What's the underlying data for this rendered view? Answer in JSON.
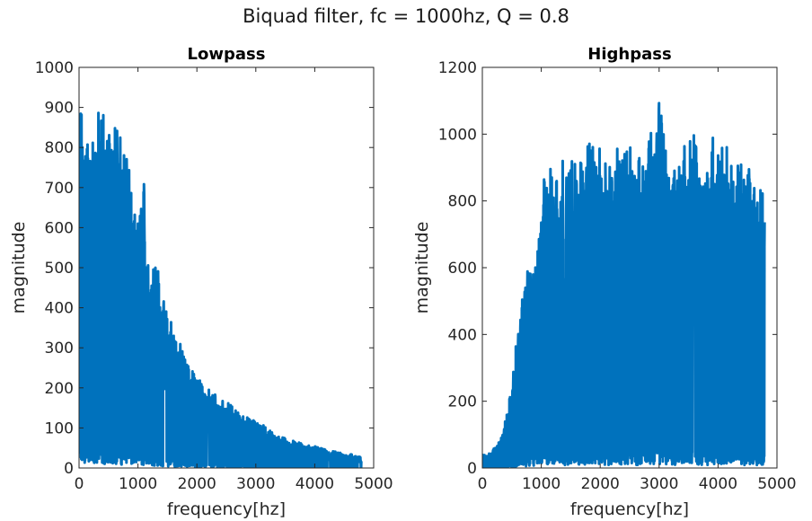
{
  "figure": {
    "title": "Biquad filter, fc = 1000hz, Q = 0.8",
    "line_color": "#0072BD"
  },
  "chart_data": [
    {
      "type": "line",
      "title": "Lowpass",
      "xlabel": "frequency[hz]",
      "ylabel": "magnitude",
      "xlim": [
        0,
        5000
      ],
      "ylim": [
        0,
        1000
      ],
      "xticks": [
        0,
        1000,
        2000,
        3000,
        4000,
        5000
      ],
      "yticks": [
        0,
        100,
        200,
        300,
        400,
        500,
        600,
        700,
        800,
        900,
        1000
      ],
      "grid": false,
      "x_data_max": 4790,
      "envelope": {
        "x": [
          0,
          100,
          200,
          300,
          400,
          500,
          600,
          700,
          800,
          900,
          1000,
          1100,
          1200,
          1300,
          1400,
          1500,
          1600,
          1700,
          1800,
          1900,
          2000,
          2200,
          2400,
          2600,
          2800,
          3000,
          3200,
          3400,
          3600,
          3800,
          4000,
          4200,
          4400,
          4600,
          4790
        ],
        "y": [
          930,
          870,
          850,
          890,
          920,
          860,
          920,
          830,
          885,
          650,
          620,
          735,
          520,
          570,
          430,
          400,
          360,
          320,
          280,
          250,
          225,
          200,
          175,
          155,
          130,
          120,
          100,
          80,
          70,
          60,
          55,
          45,
          40,
          35,
          30
        ]
      }
    },
    {
      "type": "line",
      "title": "Highpass",
      "xlabel": "frequency[hz]",
      "ylabel": "magnitude",
      "xlim": [
        0,
        5000
      ],
      "ylim": [
        0,
        1200
      ],
      "xticks": [
        0,
        1000,
        2000,
        3000,
        4000,
        5000
      ],
      "yticks": [
        0,
        200,
        400,
        600,
        800,
        1000,
        1200
      ],
      "grid": false,
      "x_data_max": 4790,
      "envelope": {
        "x": [
          0,
          100,
          200,
          300,
          400,
          500,
          600,
          700,
          800,
          900,
          1000,
          1100,
          1200,
          1300,
          1400,
          1500,
          1600,
          1700,
          1800,
          1900,
          2000,
          2200,
          2400,
          2600,
          2800,
          3000,
          3200,
          3400,
          3600,
          3800,
          4000,
          4200,
          4400,
          4600,
          4790
        ],
        "y": [
          40,
          40,
          60,
          90,
          150,
          250,
          420,
          530,
          630,
          600,
          790,
          960,
          860,
          1000,
          900,
          920,
          960,
          920,
          1040,
          950,
          960,
          940,
          1000,
          930,
          960,
          1130,
          930,
          980,
          1010,
          910,
          1060,
          930,
          910,
          890,
          820
        ]
      }
    }
  ]
}
